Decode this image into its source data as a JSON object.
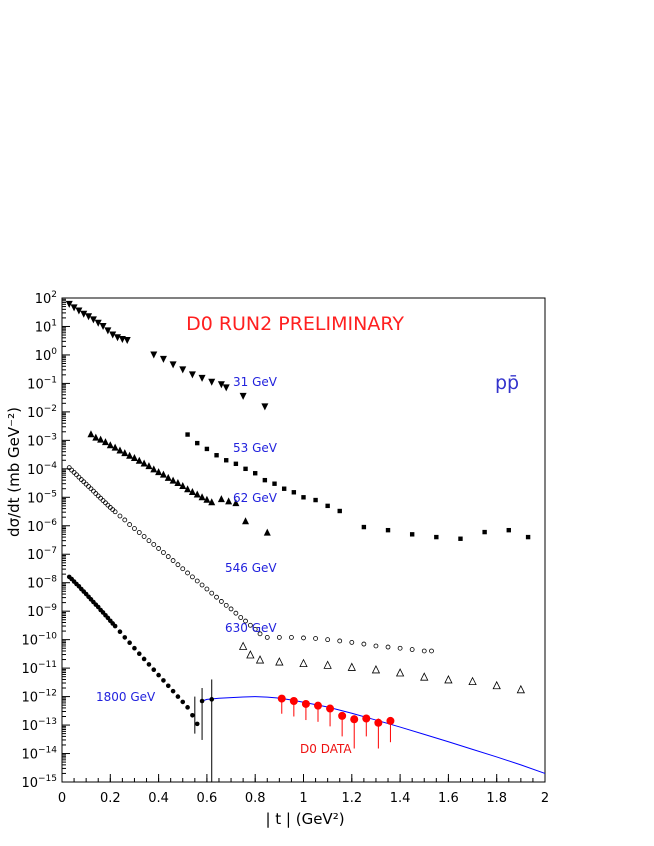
{
  "chart_data": {
    "type": "scatter",
    "xlabel": "| t | (GeV²)",
    "ylabel": "dσ/dt (mb GeV⁻²)",
    "yscale": "log",
    "xlim": [
      0,
      2
    ],
    "ylim": [
      1e-15,
      100
    ],
    "x_ticks": [
      0,
      0.2,
      0.4,
      0.6,
      0.8,
      1,
      1.2,
      1.4,
      1.6,
      1.8,
      2
    ],
    "x_tick_labels": [
      "0",
      "0.2",
      "0.4",
      "0.6",
      "0.8",
      "1",
      "1.2",
      "1.4",
      "1.6",
      "1.8",
      "2"
    ],
    "y_tick_exponents": [
      2,
      1,
      0,
      -1,
      -2,
      -3,
      -4,
      -5,
      -6,
      -7,
      -8,
      -9,
      -10,
      -11,
      -12,
      -13,
      -14,
      -15
    ],
    "annotations": {
      "run": "D0 RUN2 PRELIMINARY",
      "reaction": "pp̄",
      "d0_data": "D0 DATA"
    },
    "series": [
      {
        "name": "31 GeV",
        "marker": "triangle-down",
        "color": "#000000",
        "x": [
          0.03,
          0.05,
          0.07,
          0.09,
          0.11,
          0.13,
          0.15,
          0.17,
          0.19,
          0.21,
          0.23,
          0.25,
          0.27,
          0.38,
          0.42,
          0.46,
          0.5,
          0.54,
          0.58,
          0.62,
          0.66,
          0.68,
          0.75,
          0.84
        ],
        "y": [
          60,
          45,
          35,
          27,
          22,
          17,
          13,
          10,
          7,
          5,
          4,
          3.5,
          3.2,
          1.0,
          0.7,
          0.45,
          0.3,
          0.2,
          0.15,
          0.11,
          0.09,
          0.07,
          0.035,
          0.015
        ]
      },
      {
        "name": "53 GeV",
        "marker": "square",
        "color": "#000000",
        "x": [
          0.52,
          0.56,
          0.6,
          0.64,
          0.68,
          0.72,
          0.76,
          0.8,
          0.84,
          0.88,
          0.92,
          0.96,
          1.0,
          1.05,
          1.1,
          1.15,
          1.25,
          1.35,
          1.45,
          1.55,
          1.65,
          1.75,
          1.85,
          1.93
        ],
        "y": [
          0.0016,
          0.0008,
          0.0005,
          0.0003,
          0.0002,
          0.00015,
          0.0001,
          7e-05,
          4e-05,
          3e-05,
          2e-05,
          1.5e-05,
          1e-05,
          8e-06,
          5e-06,
          3.3e-06,
          9e-07,
          7e-07,
          5e-07,
          4e-07,
          3.5e-07,
          6e-07,
          7e-07,
          4e-07
        ]
      },
      {
        "name": "62 GeV",
        "marker": "triangle-up",
        "color": "#000000",
        "x": [
          0.12,
          0.14,
          0.16,
          0.18,
          0.2,
          0.22,
          0.24,
          0.26,
          0.28,
          0.3,
          0.32,
          0.34,
          0.36,
          0.38,
          0.4,
          0.42,
          0.44,
          0.46,
          0.48,
          0.5,
          0.52,
          0.54,
          0.56,
          0.58,
          0.6,
          0.62,
          0.66,
          0.69,
          0.72,
          0.76,
          0.85
        ],
        "y": [
          0.0017,
          0.0013,
          0.0011,
          0.0009,
          0.0007,
          0.00058,
          0.00046,
          0.00037,
          0.0003,
          0.00025,
          0.0002,
          0.00016,
          0.00013,
          0.0001,
          8e-05,
          6.5e-05,
          5e-05,
          4e-05,
          3.3e-05,
          2.6e-05,
          2e-05,
          1.6e-05,
          1.3e-05,
          1.05e-05,
          8.5e-06,
          7e-06,
          9e-06,
          7.5e-06,
          6.5e-06,
          1.5e-06,
          6e-07
        ]
      },
      {
        "name": "546 GeV",
        "marker": "circle-open",
        "color": "#000000",
        "x": [
          0.03,
          0.04,
          0.05,
          0.06,
          0.07,
          0.08,
          0.09,
          0.1,
          0.11,
          0.12,
          0.13,
          0.14,
          0.15,
          0.16,
          0.17,
          0.18,
          0.19,
          0.2,
          0.21,
          0.22,
          0.24,
          0.26,
          0.28,
          0.3,
          0.32,
          0.34,
          0.36,
          0.38,
          0.4,
          0.42,
          0.44,
          0.46,
          0.48,
          0.5,
          0.52,
          0.54,
          0.56,
          0.58,
          0.6,
          0.62,
          0.64,
          0.66,
          0.68,
          0.7,
          0.72,
          0.74,
          0.76,
          0.78,
          0.8,
          0.82,
          0.85,
          0.9,
          0.95,
          1.0,
          1.05,
          1.1,
          1.15,
          1.2,
          1.25,
          1.3,
          1.35,
          1.4,
          1.45,
          1.5,
          1.53
        ],
        "y": [
          0.00011,
          9e-05,
          7.5e-05,
          6.2e-05,
          5.1e-05,
          4.2e-05,
          3.5e-05,
          2.9e-05,
          2.4e-05,
          2e-05,
          1.65e-05,
          1.35e-05,
          1.12e-05,
          9.3e-06,
          7.7e-06,
          6.4e-06,
          5.3e-06,
          4.4e-06,
          3.7e-06,
          3.1e-06,
          2.2e-06,
          1.6e-06,
          1.1e-06,
          8e-07,
          5.8e-07,
          4.2e-07,
          3e-07,
          2.2e-07,
          1.6e-07,
          1.15e-07,
          8.3e-08,
          6e-08,
          4.3e-08,
          3.1e-08,
          2.2e-08,
          1.6e-08,
          1.15e-08,
          8.3e-09,
          6e-09,
          4.3e-09,
          3.1e-09,
          2.2e-09,
          1.6e-09,
          1.2e-09,
          8.5e-10,
          6e-10,
          4.5e-10,
          3.2e-10,
          2.3e-10,
          1.6e-10,
          1.2e-10,
          1.2e-10,
          1.2e-10,
          1.15e-10,
          1.1e-10,
          1e-10,
          9e-11,
          8e-11,
          7e-11,
          6e-11,
          5.5e-11,
          5e-11,
          4.5e-11,
          4e-11,
          4e-11
        ]
      },
      {
        "name": "630 GeV",
        "marker": "triangle-open",
        "color": "#000000",
        "x": [
          0.75,
          0.78,
          0.82,
          0.9,
          1.0,
          1.1,
          1.2,
          1.3,
          1.4,
          1.5,
          1.6,
          1.7,
          1.8,
          1.9
        ],
        "y": [
          6e-11,
          3e-11,
          2e-11,
          1.7e-11,
          1.5e-11,
          1.3e-11,
          1.1e-11,
          9e-12,
          7e-12,
          5e-12,
          4e-12,
          3.5e-12,
          2.5e-12,
          1.8e-12
        ]
      },
      {
        "name": "1800 GeV",
        "marker": "circle-filled",
        "color": "#000000",
        "x": [
          0.03,
          0.04,
          0.05,
          0.06,
          0.07,
          0.08,
          0.09,
          0.1,
          0.11,
          0.12,
          0.13,
          0.14,
          0.15,
          0.16,
          0.17,
          0.18,
          0.19,
          0.2,
          0.21,
          0.22,
          0.24,
          0.26,
          0.28,
          0.3,
          0.32,
          0.34,
          0.36,
          0.38,
          0.4,
          0.42,
          0.44,
          0.46,
          0.48,
          0.5,
          0.52,
          0.54,
          0.56,
          0.58,
          0.62
        ],
        "y": [
          1.6e-08,
          1.35e-08,
          1.1e-08,
          9e-09,
          7.5e-09,
          6e-09,
          4.9e-09,
          4e-09,
          3.2e-09,
          2.6e-09,
          2.1e-09,
          1.7e-09,
          1.4e-09,
          1.1e-09,
          9e-10,
          7.2e-10,
          5.8e-10,
          4.6e-10,
          3.7e-10,
          3e-10,
          1.9e-10,
          1.2e-10,
          7.8e-11,
          5e-11,
          3.2e-11,
          2.1e-11,
          1.35e-11,
          8.8e-12,
          5.7e-12,
          3.7e-12,
          2.4e-12,
          1.55e-12,
          1e-12,
          6.5e-13,
          4.2e-13,
          2.2e-13,
          1.1e-13,
          7e-13,
          8e-13
        ],
        "error_bars": [
          {
            "x": 0.55,
            "lo": 5e-14,
            "hi": 1e-12
          },
          {
            "x": 0.58,
            "lo": 3e-14,
            "hi": 2e-12
          },
          {
            "x": 0.62,
            "lo": 1e-15,
            "hi": 4e-12
          }
        ]
      },
      {
        "name": "D0 DATA",
        "marker": "circle-filled",
        "color": "#ff0000",
        "x": [
          0.91,
          0.96,
          1.01,
          1.06,
          1.11,
          1.16,
          1.21,
          1.26,
          1.31,
          1.36
        ],
        "y": [
          8.5e-13,
          7e-13,
          5.5e-13,
          4.8e-13,
          3.8e-13,
          2.1e-13,
          1.6e-13,
          1.7e-13,
          1.2e-13,
          1.4e-13
        ],
        "error_lo": [
          2.5e-13,
          2e-13,
          1.5e-13,
          1.3e-13,
          9e-14,
          4e-14,
          1.5e-14,
          4e-14,
          1.5e-14,
          2.5e-14
        ],
        "error_hi": [
          1.1e-12,
          9e-13,
          7e-13,
          6.2e-13,
          5e-13,
          2.8e-13,
          2.2e-13,
          2.3e-13,
          1.7e-13,
          1.9e-13
        ]
      }
    ],
    "curve": {
      "color": "#0000ff",
      "x": [
        0.58,
        0.6,
        0.65,
        0.7,
        0.75,
        0.8,
        0.85,
        0.9,
        0.95,
        1.0,
        1.1,
        1.2,
        1.3,
        1.4,
        1.5,
        1.6,
        1.7,
        1.8,
        1.9,
        2.0
      ],
      "y": [
        7e-13,
        8e-13,
        8.7e-13,
        9.2e-13,
        9.7e-13,
        1e-12,
        9.6e-13,
        8.8e-13,
        7.6e-13,
        6.3e-13,
        4.3e-13,
        2.6e-13,
        1.5e-13,
        8.5e-14,
        4.7e-14,
        2.6e-14,
        1.4e-14,
        7.6e-15,
        4e-15,
        2e-15
      ]
    }
  }
}
